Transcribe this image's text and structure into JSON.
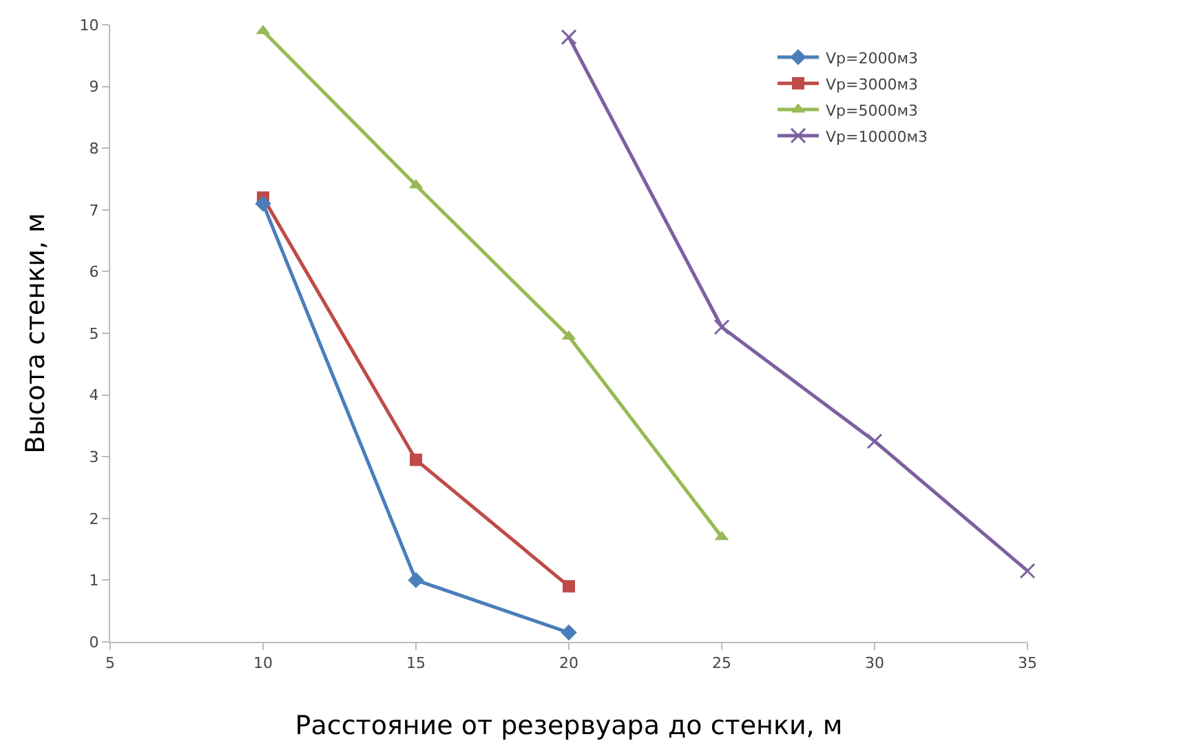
{
  "chart_data": {
    "type": "line",
    "xlabel": "Расстояние от резервуара до стенки, м",
    "ylabel": "Высота стенки, м",
    "xlim": [
      5,
      35
    ],
    "xticks": [
      5,
      10,
      15,
      20,
      25,
      30,
      35
    ],
    "ylim": [
      0,
      10
    ],
    "yticks": [
      0,
      1,
      2,
      3,
      4,
      5,
      6,
      7,
      8,
      9,
      10
    ],
    "grid": false,
    "legend": "top right",
    "series": [
      {
        "name": "Vр=2000м3",
        "color": "#4a7ebb",
        "marker": "diamond",
        "x": [
          10,
          15,
          20
        ],
        "values": [
          7.1,
          1.0,
          0.15
        ]
      },
      {
        "name": "Vр=3000м3",
        "color": "#be4b48",
        "marker": "square",
        "x": [
          10,
          15,
          20
        ],
        "values": [
          7.2,
          2.95,
          0.9
        ]
      },
      {
        "name": "Vр=5000м3",
        "color": "#98b954",
        "marker": "triangle",
        "x": [
          10,
          15,
          20,
          25
        ],
        "values": [
          9.9,
          7.4,
          4.95,
          1.7
        ]
      },
      {
        "name": "Vр=10000м3",
        "color": "#7d60a0",
        "marker": "cross",
        "x": [
          20,
          25,
          30,
          35
        ],
        "values": [
          9.8,
          5.1,
          3.25,
          1.15
        ]
      }
    ]
  }
}
